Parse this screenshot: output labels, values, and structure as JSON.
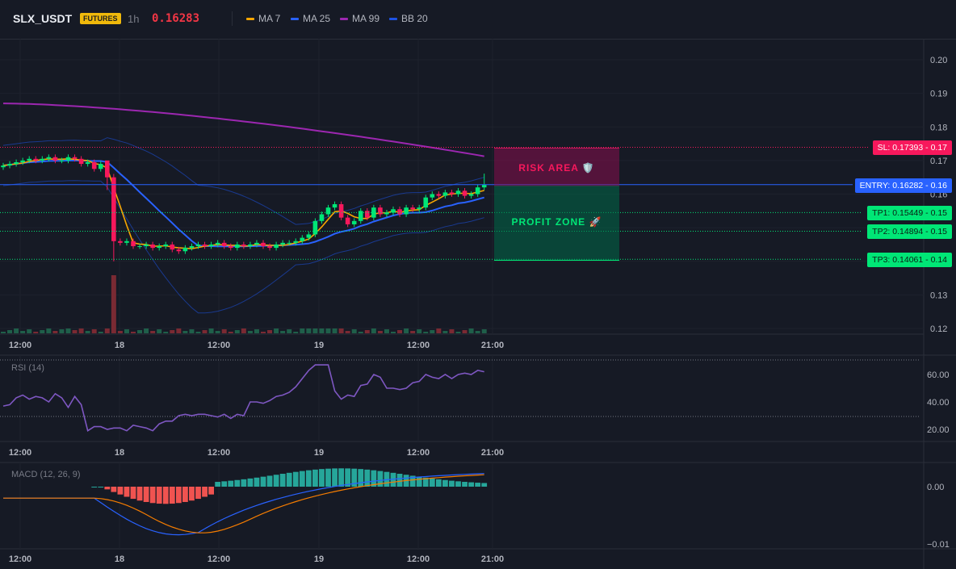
{
  "header": {
    "symbol": "SLX_USDT",
    "badge": "FUTURES",
    "timeframe": "1h",
    "price": "0.16283",
    "legend": [
      {
        "label": "MA 7",
        "color": "#f7a600"
      },
      {
        "label": "MA 25",
        "color": "#2962ff"
      },
      {
        "label": "MA 99",
        "color": "#9c27b0"
      },
      {
        "label": "BB 20",
        "color": "#1e53e5"
      }
    ]
  },
  "price_axis": {
    "ticks": [
      {
        "label": "0.20",
        "value": 0.2
      },
      {
        "label": "0.19",
        "value": 0.19
      },
      {
        "label": "0.18",
        "value": 0.18
      },
      {
        "label": "0.17",
        "value": 0.17
      },
      {
        "label": "0.16",
        "value": 0.16
      },
      {
        "label": "0.15",
        "value": 0.15
      },
      {
        "label": "0.14",
        "value": 0.14
      },
      {
        "label": "0.13",
        "value": 0.13
      },
      {
        "label": "0.12",
        "value": 0.12
      }
    ]
  },
  "time_axis": {
    "labels": [
      "12:00",
      "18",
      "12:00",
      "19",
      "12:00",
      "21:00"
    ]
  },
  "levels": {
    "sl": {
      "label": "SL: 0.17393",
      "suffix": "0.17",
      "value": 0.17393,
      "color": "#f7185c"
    },
    "entry": {
      "label": "ENTRY: 0.16282",
      "suffix": "0.16",
      "value": 0.16282,
      "color": "#2962ff"
    },
    "tp1": {
      "label": "TP1: 0.15449",
      "suffix": "0.15",
      "value": 0.15449,
      "color": "#00e676"
    },
    "tp2": {
      "label": "TP2: 0.14894",
      "suffix": "0.15",
      "value": 0.14894,
      "color": "#00e676"
    },
    "tp3": {
      "label": "TP3: 0.14061",
      "suffix": "0.14",
      "value": 0.14061,
      "color": "#00e676"
    }
  },
  "zones": {
    "risk": {
      "label": "RISK AREA 🛡️"
    },
    "profit": {
      "label": "PROFIT ZONE 🚀"
    }
  },
  "rsi": {
    "title": "RSI (14)",
    "ticks": [
      {
        "label": "60.00",
        "value": 60
      },
      {
        "label": "40.00",
        "value": 40
      },
      {
        "label": "20.00",
        "value": 20
      }
    ],
    "values": [
      37,
      38,
      43,
      45,
      42,
      44,
      43,
      40,
      46,
      43,
      36,
      44,
      38,
      19,
      22,
      22,
      20,
      21,
      21,
      19,
      23,
      22,
      21,
      19,
      24,
      26,
      26,
      30,
      31,
      30,
      31,
      31,
      30,
      29,
      31,
      28,
      31,
      30,
      40,
      40,
      39,
      41,
      44,
      45,
      47,
      51,
      57,
      63,
      67,
      67,
      67,
      48,
      42,
      45,
      44,
      52,
      53,
      60,
      58,
      50,
      50,
      49,
      50,
      54,
      55,
      60,
      58,
      57,
      60,
      57,
      60,
      61,
      60,
      63,
      62
    ]
  },
  "macd": {
    "title": "MACD (12, 26, 9)",
    "ticks": [
      {
        "label": "0.00",
        "value": 0.0
      },
      {
        "label": "−0.01",
        "value": -0.01
      }
    ]
  }
}
